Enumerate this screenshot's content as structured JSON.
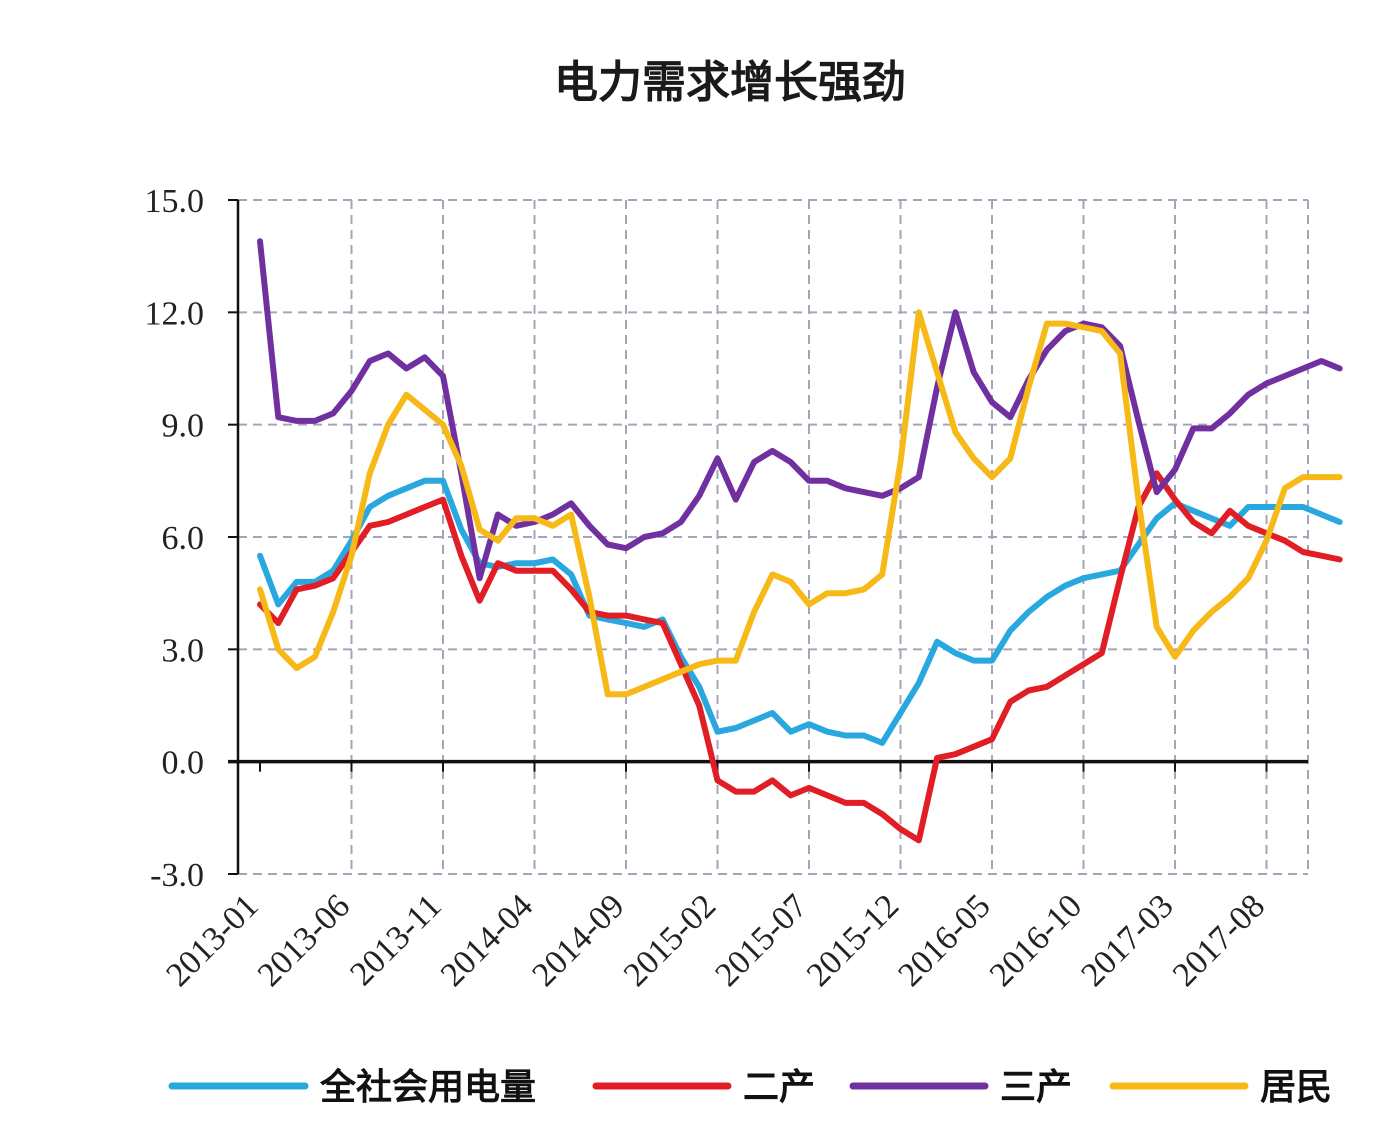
{
  "chart_data": {
    "type": "line",
    "title": "电力需求增长强劲",
    "xlabel": "",
    "ylabel": "",
    "ylim": [
      -3.0,
      15.0
    ],
    "yticks": [
      "15.0",
      "12.0",
      "9.0",
      "6.0",
      "3.0",
      "0.0",
      "-3.0"
    ],
    "grid": true,
    "legend_position": "bottom",
    "x": [
      "2013-01",
      "2013-02",
      "2013-03",
      "2013-04",
      "2013-05",
      "2013-06",
      "2013-07",
      "2013-08",
      "2013-09",
      "2013-10",
      "2013-11",
      "2013-12",
      "2014-01",
      "2014-02",
      "2014-03",
      "2014-04",
      "2014-05",
      "2014-06",
      "2014-07",
      "2014-08",
      "2014-09",
      "2014-10",
      "2014-11",
      "2014-12",
      "2015-01",
      "2015-02",
      "2015-03",
      "2015-04",
      "2015-05",
      "2015-06",
      "2015-07",
      "2015-08",
      "2015-09",
      "2015-10",
      "2015-11",
      "2015-12",
      "2016-01",
      "2016-02",
      "2016-03",
      "2016-04",
      "2016-05",
      "2016-06",
      "2016-07",
      "2016-08",
      "2016-09",
      "2016-10",
      "2016-11",
      "2016-12",
      "2017-01",
      "2017-02",
      "2017-03",
      "2017-04",
      "2017-05",
      "2017-06",
      "2017-07",
      "2017-08",
      "2017-09",
      "2017-10",
      "2017-11",
      "2017-12"
    ],
    "xtick_labels": [
      "2013-01",
      "2013-06",
      "2013-11",
      "2014-04",
      "2014-09",
      "2015-02",
      "2015-07",
      "2015-12",
      "2016-05",
      "2016-10",
      "2017-03",
      "2017-08"
    ],
    "series": [
      {
        "name": "全社会用电量",
        "color": "#29a8e0",
        "values": [
          5.5,
          4.2,
          4.8,
          4.8,
          5.1,
          5.9,
          6.8,
          7.1,
          7.3,
          7.5,
          7.5,
          6.2,
          5.3,
          5.2,
          5.3,
          5.3,
          5.4,
          5.0,
          3.9,
          3.8,
          3.7,
          3.6,
          3.8,
          2.8,
          2.0,
          0.8,
          0.9,
          1.1,
          1.3,
          0.8,
          1.0,
          0.8,
          0.7,
          0.7,
          0.5,
          1.3,
          2.1,
          3.2,
          2.9,
          2.7,
          2.7,
          3.5,
          4.0,
          4.4,
          4.7,
          4.9,
          5.0,
          5.1,
          5.8,
          6.5,
          6.9,
          6.7,
          6.5,
          6.3,
          6.8,
          6.8,
          6.8,
          6.8,
          6.6,
          6.4
        ]
      },
      {
        "name": "二产",
        "color": "#e11d25",
        "values": [
          4.2,
          3.7,
          4.6,
          4.7,
          4.9,
          5.6,
          6.3,
          6.4,
          6.6,
          6.8,
          7.0,
          5.5,
          4.3,
          5.3,
          5.1,
          5.1,
          5.1,
          4.6,
          4.0,
          3.9,
          3.9,
          3.8,
          3.7,
          2.6,
          1.5,
          -0.5,
          -0.8,
          -0.8,
          -0.5,
          -0.9,
          -0.7,
          -0.9,
          -1.1,
          -1.1,
          -1.4,
          -1.8,
          -2.1,
          0.1,
          0.2,
          0.4,
          0.6,
          1.6,
          1.9,
          2.0,
          2.3,
          2.6,
          2.9,
          4.9,
          6.8,
          7.7,
          7.0,
          6.4,
          6.1,
          6.7,
          6.3,
          6.1,
          5.9,
          5.6,
          5.5,
          5.4
        ]
      },
      {
        "name": "三产",
        "color": "#7030a0",
        "values": [
          13.9,
          9.2,
          9.1,
          9.1,
          9.3,
          9.9,
          10.7,
          10.9,
          10.5,
          10.8,
          10.3,
          7.7,
          4.9,
          6.6,
          6.3,
          6.4,
          6.6,
          6.9,
          6.3,
          5.8,
          5.7,
          6.0,
          6.1,
          6.4,
          7.1,
          8.1,
          7.0,
          8.0,
          8.3,
          8.0,
          7.5,
          7.5,
          7.3,
          7.2,
          7.1,
          7.3,
          7.6,
          10.0,
          12.0,
          10.4,
          9.6,
          9.2,
          10.2,
          11.0,
          11.5,
          11.7,
          11.6,
          11.1,
          9.1,
          7.2,
          7.8,
          8.9,
          8.9,
          9.3,
          9.8,
          10.1,
          10.3,
          10.5,
          10.7,
          10.5
        ]
      },
      {
        "name": "居民",
        "color": "#f7b918",
        "values": [
          4.6,
          3.0,
          2.5,
          2.8,
          4.0,
          5.5,
          7.7,
          9.0,
          9.8,
          9.4,
          9.0,
          7.9,
          6.2,
          5.9,
          6.5,
          6.5,
          6.3,
          6.6,
          4.4,
          1.8,
          1.8,
          2.0,
          2.2,
          2.4,
          2.6,
          2.7,
          2.7,
          4.0,
          5.0,
          4.8,
          4.2,
          4.5,
          4.5,
          4.6,
          5.0,
          8.0,
          12.0,
          10.4,
          8.8,
          8.1,
          7.6,
          8.1,
          10.0,
          11.7,
          11.7,
          11.6,
          11.5,
          10.9,
          7.0,
          3.6,
          2.8,
          3.5,
          4.0,
          4.4,
          4.9,
          5.9,
          7.3,
          7.6,
          7.6,
          7.6
        ]
      }
    ]
  }
}
